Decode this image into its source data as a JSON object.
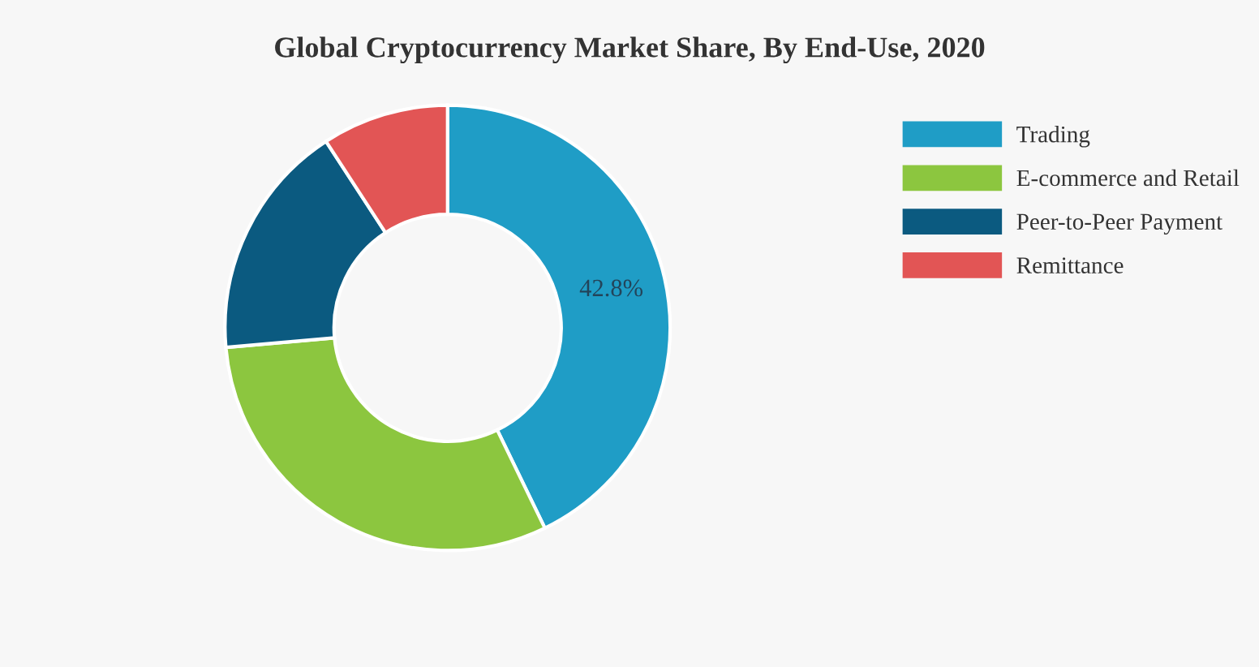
{
  "chart_data": {
    "type": "donut",
    "title": "Global Cryptocurrency Market Share, By End-Use, 2020",
    "categories": [
      "Trading",
      "E-commerce and Retail",
      "Peer-to-Peer Payment",
      "Remittance"
    ],
    "values": [
      42.8,
      30.8,
      17.2,
      9.2
    ],
    "colors": [
      "#1f9dc6",
      "#8cc63f",
      "#0b5a80",
      "#e25555"
    ],
    "value_labels": [
      "42.8%",
      null,
      null,
      null
    ],
    "legend": "right"
  }
}
